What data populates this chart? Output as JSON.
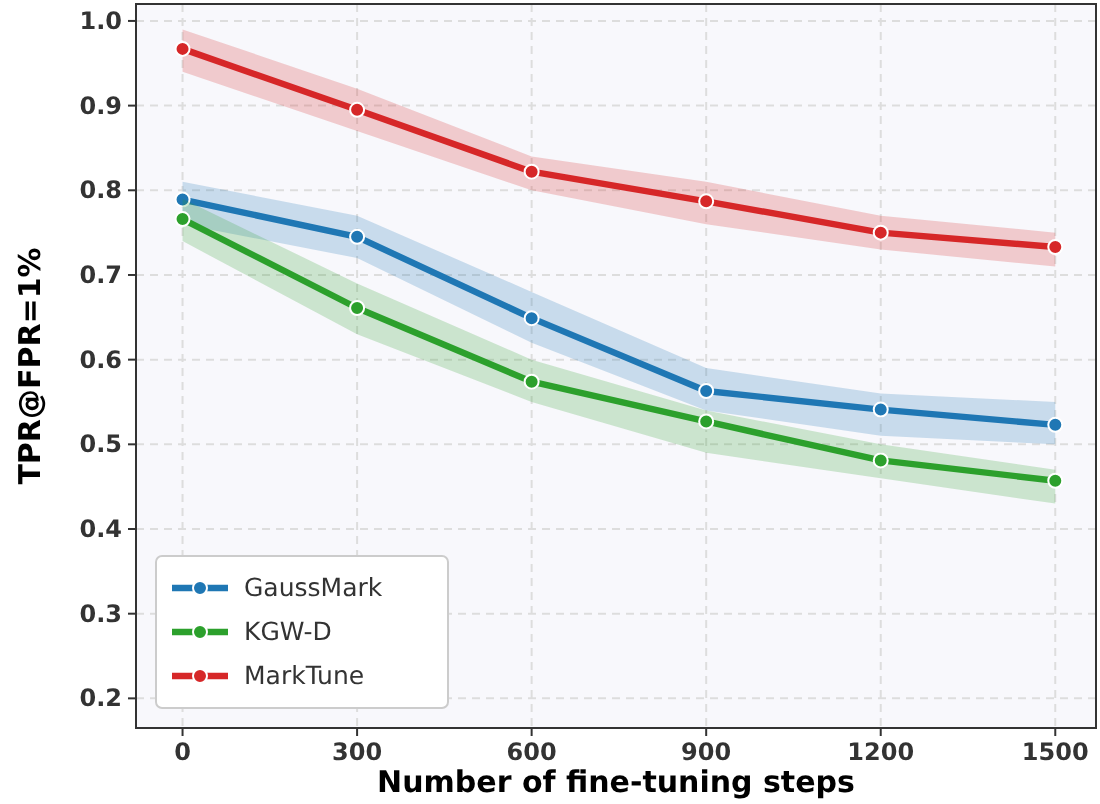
{
  "chart_data": {
    "type": "line",
    "xlabel": "Number of fine-tuning steps",
    "ylabel": "TPR@FPR=1%",
    "x": [
      0,
      300,
      600,
      900,
      1200,
      1500
    ],
    "xlim": [
      -80,
      1570
    ],
    "xticks": [
      0,
      300,
      600,
      900,
      1200,
      1500
    ],
    "ylim": [
      0.165,
      1.02
    ],
    "yticks": [
      {
        "value": 0.2,
        "label": "0.2"
      },
      {
        "value": 0.3,
        "label": "0.3"
      },
      {
        "value": 0.4,
        "label": "0.4"
      },
      {
        "value": 0.5,
        "label": "0.5"
      },
      {
        "value": 0.6,
        "label": "0.6"
      },
      {
        "value": 0.7,
        "label": "0.7"
      },
      {
        "value": 0.8,
        "label": "0.8"
      },
      {
        "value": 0.9,
        "label": "0.9"
      },
      {
        "value": 1.0,
        "label": "1.0"
      }
    ],
    "grid": true,
    "legend": "bottom left",
    "marker": "circle",
    "line_style": "solid",
    "series": [
      {
        "name": "GaussMark",
        "color": "#1f77b4",
        "values": [
          0.789,
          0.745,
          0.649,
          0.563,
          0.541,
          0.523
        ],
        "lower": [
          0.76,
          0.72,
          0.62,
          0.54,
          0.51,
          0.5
        ],
        "upper": [
          0.81,
          0.77,
          0.68,
          0.59,
          0.56,
          0.55
        ]
      },
      {
        "name": "KGW-D",
        "color": "#2ca02c",
        "values": [
          0.766,
          0.661,
          0.574,
          0.527,
          0.481,
          0.457
        ],
        "lower": [
          0.74,
          0.63,
          0.55,
          0.49,
          0.46,
          0.43
        ],
        "upper": [
          0.79,
          0.69,
          0.6,
          0.54,
          0.5,
          0.47
        ]
      },
      {
        "name": "MarkTune",
        "color": "#d62728",
        "values": [
          0.967,
          0.895,
          0.822,
          0.787,
          0.75,
          0.733
        ],
        "lower": [
          0.94,
          0.87,
          0.8,
          0.76,
          0.73,
          0.71
        ],
        "upper": [
          0.99,
          0.92,
          0.84,
          0.81,
          0.77,
          0.75
        ]
      }
    ]
  }
}
